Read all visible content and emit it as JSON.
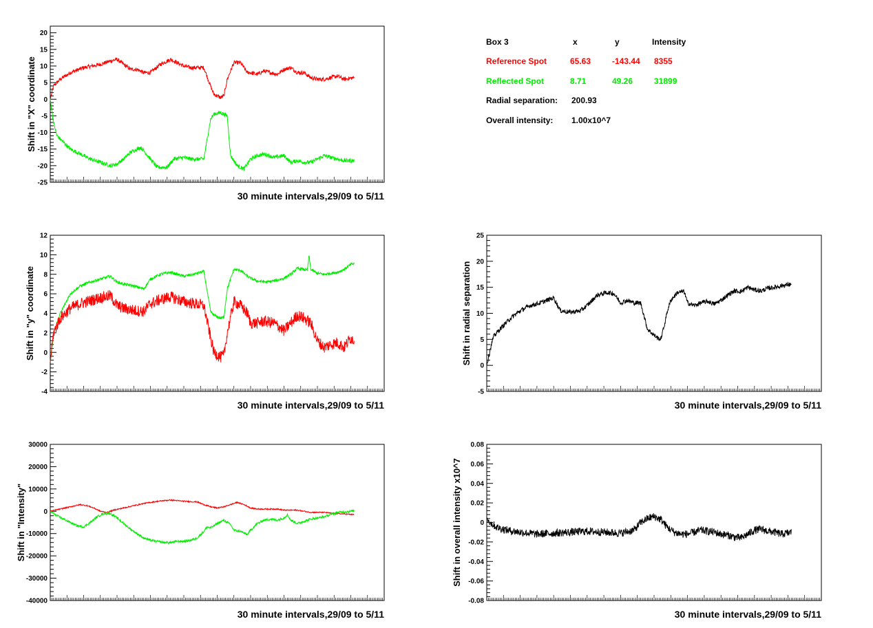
{
  "colors": {
    "reference": "#ff0000",
    "reflected": "#00ee00",
    "combined": "#000000"
  },
  "info_box": {
    "title": "Box 3",
    "col_x": "x",
    "col_y": "y",
    "col_intensity": "Intensity",
    "reference_label": "Reference Spot",
    "reference_x": "65.63",
    "reference_y": "-143.44",
    "reference_intensity": "8355",
    "reflected_label": "Reflected Spot",
    "reflected_x": "8.71",
    "reflected_y": "49.26",
    "reflected_intensity": "31899",
    "radial_label": "Radial separation:",
    "radial_value": "200.93",
    "overall_label": "Overall intensity:",
    "overall_value": "1.00x10^7"
  },
  "chart_data": [
    {
      "id": "x-shift",
      "type": "line",
      "ylabel": "Shift in \"X\" coordinate",
      "xlabel": "30 minute intervals,29/09 to 5/11",
      "xlim": [
        0,
        100
      ],
      "ylim": [
        -25,
        22
      ],
      "yticks": [
        -25,
        -20,
        -15,
        -10,
        -5,
        0,
        5,
        10,
        15,
        20
      ],
      "series": [
        {
          "color_key": "reference",
          "noise": 0.6,
          "x": [
            0,
            1,
            3,
            6,
            10,
            15,
            18,
            20,
            24,
            26,
            28,
            30,
            33,
            36,
            38,
            40,
            42,
            44,
            46,
            48,
            49,
            51,
            52,
            53,
            55,
            57,
            59,
            60,
            62,
            64,
            66,
            68,
            70,
            72,
            74,
            76,
            78,
            80,
            82,
            84,
            86,
            88,
            91
          ],
          "y": [
            0,
            4,
            6,
            8,
            9.5,
            10.5,
            11.5,
            12,
            9,
            9,
            8,
            8,
            10.5,
            12,
            11,
            10,
            9.5,
            9.5,
            9.5,
            4,
            1.5,
            0.5,
            1,
            6,
            11,
            11,
            8,
            8,
            7.5,
            8.5,
            8,
            7.5,
            9,
            9.5,
            8,
            8,
            6.5,
            6,
            6,
            6.5,
            7,
            6,
            6.5
          ]
        },
        {
          "color_key": "reflected",
          "noise": 0.6,
          "x": [
            0,
            1,
            2,
            4,
            6,
            8,
            10,
            12,
            15,
            18,
            20,
            22,
            24,
            27,
            28,
            30,
            32,
            35,
            37,
            40,
            42,
            44,
            46,
            48,
            49,
            51,
            53,
            54,
            56,
            58,
            60,
            62,
            64,
            67,
            70,
            72,
            74,
            76,
            78,
            80,
            82,
            84,
            86,
            88,
            91
          ],
          "y": [
            0,
            -7,
            -11,
            -13,
            -15,
            -16,
            -17,
            -18,
            -19,
            -20,
            -19.5,
            -18,
            -16,
            -14.5,
            -15.5,
            -18,
            -20.5,
            -20.5,
            -18,
            -17.5,
            -18,
            -18,
            -18,
            -6,
            -4.5,
            -4,
            -5,
            -17,
            -20,
            -21,
            -18,
            -17,
            -16.5,
            -17.5,
            -17,
            -19,
            -18.5,
            -19,
            -19,
            -18,
            -17,
            -17.5,
            -18,
            -18.5,
            -18.5
          ]
        }
      ]
    },
    {
      "id": "y-shift",
      "type": "line",
      "ylabel": "Shift in \"y\" coordinate",
      "xlabel": "30 minute intervals,29/09 to 5/11",
      "xlim": [
        0,
        100
      ],
      "ylim": [
        -4,
        12
      ],
      "yticks": [
        -4,
        -2,
        0,
        2,
        4,
        6,
        8,
        10,
        12
      ],
      "series": [
        {
          "color_key": "reflected",
          "noise": 0.15,
          "x": [
            0,
            1,
            3,
            6,
            9,
            12,
            15,
            18,
            20,
            22,
            25,
            28,
            30,
            33,
            36,
            40,
            43,
            46,
            48,
            49,
            51,
            52,
            53,
            55,
            57,
            59,
            60,
            62,
            65,
            68,
            70,
            72,
            74,
            76,
            77,
            77.5,
            78,
            80,
            82,
            84,
            86,
            88,
            90,
            91
          ],
          "y": [
            -1,
            2,
            4,
            6,
            6.8,
            7.2,
            7.5,
            7.8,
            7.2,
            7.0,
            6.8,
            6.5,
            7.5,
            8.0,
            8.2,
            7.8,
            8.0,
            8.3,
            4.2,
            3.8,
            3.5,
            3.6,
            6.5,
            8.5,
            8.4,
            7.8,
            7.6,
            7.3,
            7.2,
            7.4,
            7.6,
            8.0,
            8.6,
            8.5,
            8.4,
            9.9,
            8.5,
            8.1,
            8.0,
            8.1,
            8.2,
            8.5,
            9.0,
            9.1
          ]
        },
        {
          "color_key": "reference",
          "noise": 0.6,
          "x": [
            0,
            1,
            3,
            6,
            9,
            12,
            15,
            18,
            20,
            22,
            25,
            28,
            30,
            33,
            36,
            40,
            43,
            46,
            48,
            49,
            51,
            52,
            53,
            55,
            57,
            59,
            60,
            62,
            64,
            67,
            69,
            70,
            72,
            74,
            76,
            78,
            80,
            82,
            84,
            86,
            88,
            90,
            91
          ],
          "y": [
            -1,
            2,
            3.5,
            4.5,
            5.0,
            5.3,
            5.6,
            5.8,
            4.8,
            4.5,
            4.3,
            4.2,
            5.0,
            5.4,
            5.7,
            5.2,
            5.0,
            4.8,
            1.5,
            0,
            -0.5,
            -0.3,
            2.0,
            5.2,
            4.8,
            4.0,
            3.0,
            3.0,
            3.2,
            3.0,
            2.5,
            2.2,
            3.0,
            3.8,
            3.5,
            3.0,
            1.2,
            0.5,
            0.8,
            1.0,
            0.5,
            1.5,
            1.2
          ]
        }
      ]
    },
    {
      "id": "radial-shift",
      "type": "line",
      "ylabel": "Shift in radial separation",
      "xlabel": "30 minute intervals,29/09 to 5/11",
      "xlim": [
        0,
        100
      ],
      "ylim": [
        -5,
        25
      ],
      "yticks": [
        -5,
        0,
        5,
        10,
        15,
        20,
        25
      ],
      "series": [
        {
          "color_key": "combined",
          "noise": 0.45,
          "x": [
            0,
            1,
            2,
            4,
            7,
            10,
            13,
            16,
            18,
            20,
            22,
            25,
            28,
            30,
            33,
            36,
            38,
            40,
            42,
            44,
            46,
            47,
            48,
            50,
            51,
            52,
            53,
            54,
            55,
            57,
            59,
            60,
            62,
            64,
            66,
            68,
            70,
            72,
            74,
            76,
            78,
            80,
            82,
            84,
            86,
            88,
            90,
            91
          ],
          "y": [
            0,
            3,
            5.5,
            7.0,
            9.0,
            10.5,
            11.5,
            12.0,
            12.5,
            13.0,
            10.5,
            10.2,
            10.5,
            11.5,
            13.5,
            14.0,
            13.8,
            12.0,
            12.5,
            12.0,
            12.0,
            9.5,
            7.0,
            5.8,
            5.3,
            5.0,
            7.5,
            10.5,
            12.5,
            14.0,
            14.2,
            12.0,
            11.5,
            12.0,
            12.3,
            11.8,
            12.5,
            13.5,
            14.3,
            14.2,
            15.0,
            14.5,
            14.3,
            14.8,
            15.0,
            15.3,
            15.5,
            15.6
          ]
        }
      ]
    },
    {
      "id": "intensity-shift",
      "type": "line",
      "ylabel": "Shift in \"Intensity\"",
      "xlabel": "30 minute intervals,29/09 to 5/11",
      "xlim": [
        0,
        100
      ],
      "ylim": [
        -40000,
        30000
      ],
      "yticks": [
        -40000,
        -30000,
        -20000,
        -10000,
        0,
        10000,
        20000,
        30000
      ],
      "series": [
        {
          "color_key": "reference",
          "noise": 250,
          "x": [
            0,
            3,
            6,
            9,
            11,
            13,
            15,
            17,
            19,
            22,
            25,
            28,
            31,
            34,
            36,
            38,
            40,
            42,
            44,
            46,
            48,
            50,
            52,
            54,
            56,
            58,
            60,
            62,
            65,
            68,
            70,
            72,
            74,
            76,
            78,
            80,
            82,
            85,
            88,
            91
          ],
          "y": [
            0,
            1000,
            2000,
            3000,
            2500,
            1500,
            0,
            -500,
            500,
            1500,
            2500,
            3500,
            4200,
            4800,
            5000,
            4800,
            4500,
            4300,
            4200,
            3000,
            2000,
            1500,
            2000,
            3000,
            4000,
            3000,
            1500,
            1000,
            1000,
            1000,
            500,
            500,
            500,
            0,
            -500,
            -500,
            -500,
            -1000,
            -1200,
            -1500
          ]
        },
        {
          "color_key": "reflected",
          "noise": 500,
          "x": [
            0,
            2,
            4,
            6,
            8,
            10,
            12,
            14,
            16,
            18,
            20,
            22,
            24,
            26,
            28,
            30,
            32,
            34,
            36,
            38,
            40,
            42,
            44,
            46,
            47,
            48,
            50,
            52,
            54,
            55,
            57,
            59,
            60,
            62,
            64,
            66,
            68,
            70,
            71,
            72,
            74,
            76,
            78,
            80,
            82,
            84,
            86,
            88,
            90,
            91
          ],
          "y": [
            0,
            -2000,
            -3500,
            -5000,
            -6500,
            -7000,
            -5000,
            -2500,
            -1000,
            -1000,
            -3000,
            -5500,
            -8000,
            -10000,
            -12000,
            -13000,
            -13500,
            -14000,
            -14000,
            -13500,
            -13500,
            -13000,
            -12000,
            -9000,
            -7000,
            -7500,
            -5500,
            -4000,
            -6000,
            -8500,
            -9000,
            -10500,
            -8500,
            -5500,
            -4000,
            -3500,
            -4000,
            -3000,
            -1500,
            -4000,
            -5500,
            -4500,
            -3500,
            -3000,
            -2500,
            -1500,
            -500,
            -300,
            0,
            300
          ]
        }
      ]
    },
    {
      "id": "overall-intensity-shift",
      "type": "line",
      "ylabel": "Shift in overall intensity x10^7",
      "xlabel": "30 minute intervals,29/09 to 5/11",
      "xlim": [
        0,
        100
      ],
      "ylim": [
        -0.08,
        0.08
      ],
      "yticks": [
        -0.08,
        -0.06,
        -0.04,
        -0.02,
        0,
        0.02,
        0.04,
        0.06,
        0.08
      ],
      "series": [
        {
          "color_key": "combined",
          "noise": 0.004,
          "x": [
            0,
            1,
            3,
            6,
            10,
            15,
            20,
            25,
            30,
            35,
            40,
            44,
            46,
            48,
            50,
            52,
            54,
            56,
            58,
            60,
            62,
            64,
            66,
            68,
            70,
            72,
            74,
            76,
            78,
            80,
            82,
            84,
            86,
            88,
            90,
            91
          ],
          "y": [
            0.005,
            0.0,
            -0.005,
            -0.008,
            -0.01,
            -0.012,
            -0.011,
            -0.01,
            -0.009,
            -0.01,
            -0.011,
            -0.008,
            0.0,
            0.004,
            0.006,
            0.003,
            -0.005,
            -0.01,
            -0.012,
            -0.012,
            -0.01,
            -0.008,
            -0.009,
            -0.01,
            -0.012,
            -0.013,
            -0.015,
            -0.016,
            -0.012,
            -0.008,
            -0.007,
            -0.009,
            -0.01,
            -0.012,
            -0.011,
            -0.01
          ]
        }
      ]
    }
  ]
}
